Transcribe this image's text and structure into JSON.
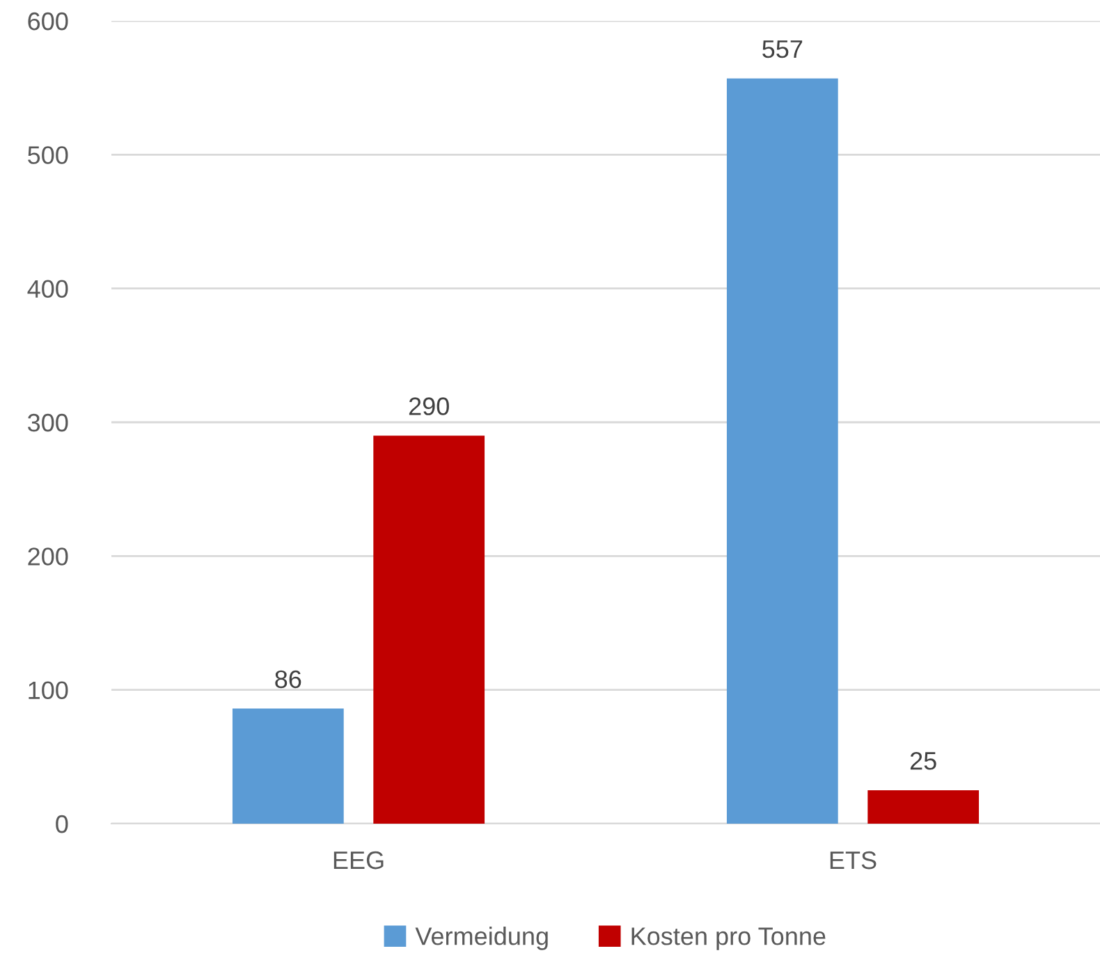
{
  "chart_data": {
    "type": "bar",
    "categories": [
      "EEG",
      "ETS"
    ],
    "series": [
      {
        "name": "Vermeidung",
        "color": "#5b9bd5",
        "values": [
          86,
          557
        ]
      },
      {
        "name": "Kosten pro Tonne",
        "color": "#c00000",
        "values": [
          290,
          25
        ]
      }
    ],
    "ylim": [
      0,
      600
    ],
    "yticks": [
      0,
      100,
      200,
      300,
      400,
      500,
      600
    ],
    "grid": "y",
    "legend": "bottom",
    "data_labels": true
  }
}
